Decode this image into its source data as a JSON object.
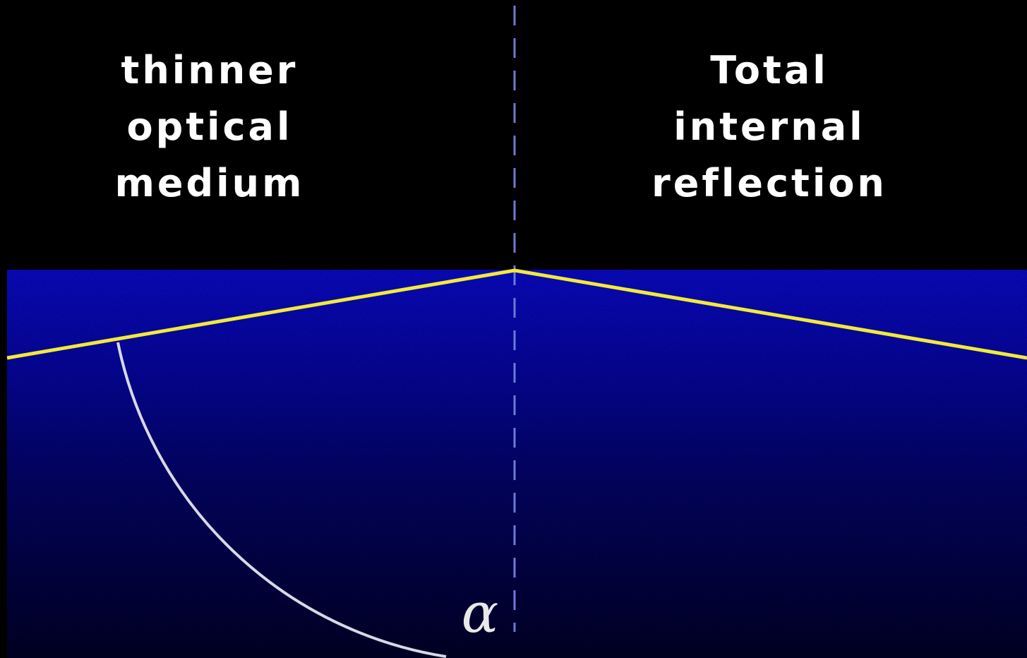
{
  "left_label": [
    "thinner",
    "optical",
    "medium"
  ],
  "right_label": [
    "Total",
    "internal",
    "reflection"
  ],
  "angle_label": "α"
}
